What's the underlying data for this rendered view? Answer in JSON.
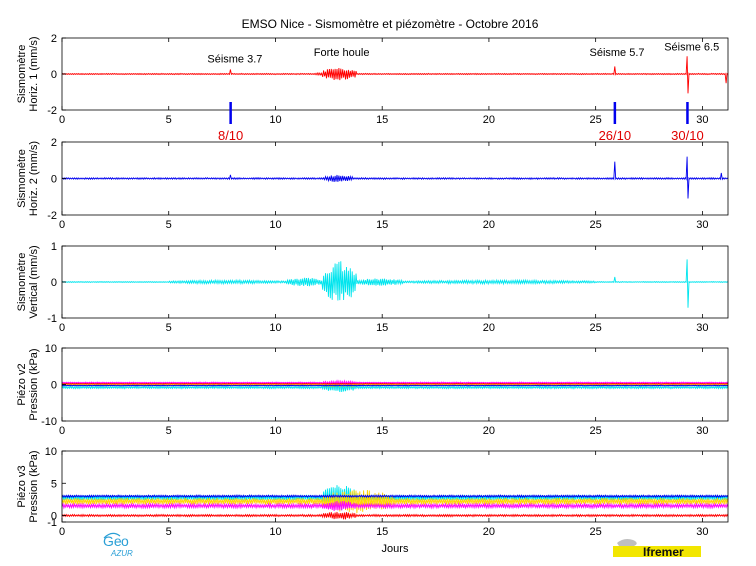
{
  "figure": {
    "title": "EMSO Nice - Sismomètre et piézomètre - Octobre 2016",
    "xlabel": "Jours",
    "xticks": [
      "0",
      "5",
      "10",
      "15",
      "20",
      "25",
      "30"
    ],
    "xlim": [
      0,
      31.2
    ]
  },
  "logos": {
    "geoazur_a": "Ge",
    "geoazur_b": "o",
    "geoazur_c": "AZUR",
    "ifremer": "Ifremer"
  },
  "chart_data": [
    {
      "type": "line",
      "ylabel": [
        "Sismomètre",
        "Horiz. 1 (mm/s)"
      ],
      "ylim": [
        -2,
        2
      ],
      "yticks": [
        "2",
        "0",
        "-2"
      ],
      "series": [
        {
          "color": "#ff0000",
          "noise": 0.03,
          "bursts": [
            {
              "start": 12.2,
              "end": 13.8,
              "amp": 0.35
            },
            {
              "start": 11.8,
              "end": 12.2,
              "amp": 0.08
            }
          ],
          "spikes": [
            {
              "x": 7.9,
              "amp": 0.25
            },
            {
              "x": 25.9,
              "amp": 0.6
            },
            {
              "x": 29.3,
              "amp": 1.1
            },
            {
              "x": 31.1,
              "amp": 0.7
            }
          ]
        }
      ],
      "annotations": [
        {
          "text": "Séisme 3.7",
          "x": 8.1,
          "y": 0.65
        },
        {
          "text": "Forte houle",
          "x": 13.1,
          "y": 1.0
        },
        {
          "text": "Séisme 5.7",
          "x": 26.0,
          "y": 1.0
        },
        {
          "text": "Séisme 6.5",
          "x": 29.5,
          "y": 1.3
        }
      ],
      "markers": [
        {
          "x": 7.9,
          "label": "8/10"
        },
        {
          "x": 25.9,
          "label": "26/10"
        },
        {
          "x": 29.3,
          "label": "30/10"
        }
      ]
    },
    {
      "type": "line",
      "ylabel": [
        "Sismomètre",
        "Horiz. 2 (mm/s)"
      ],
      "ylim": [
        -2,
        2
      ],
      "yticks": [
        "2",
        "0",
        "-2"
      ],
      "series": [
        {
          "color": "#0000ee",
          "noise": 0.04,
          "bursts": [
            {
              "start": 12.3,
              "end": 13.6,
              "amp": 0.2
            }
          ],
          "spikes": [
            {
              "x": 7.9,
              "amp": 0.2
            },
            {
              "x": 25.9,
              "amp": 1.0
            },
            {
              "x": 29.3,
              "amp": 1.8
            },
            {
              "x": 30.9,
              "amp": 0.3
            }
          ]
        }
      ]
    },
    {
      "type": "line",
      "ylabel": [
        "Sismomètre",
        "Vertical (mm/s)"
      ],
      "ylim": [
        -1,
        1
      ],
      "yticks": [
        "1",
        "0",
        "-1"
      ],
      "series": [
        {
          "color": "#00e5ee",
          "noise": 0.01,
          "bursts": [
            {
              "start": 12.2,
              "end": 13.8,
              "amp": 0.55
            },
            {
              "start": 10.5,
              "end": 12.2,
              "amp": 0.12
            },
            {
              "start": 13.8,
              "end": 16,
              "amp": 0.1
            },
            {
              "start": 5,
              "end": 10.5,
              "amp": 0.05
            },
            {
              "start": 16,
              "end": 25,
              "amp": 0.05
            }
          ],
          "spikes": [
            {
              "x": 25.9,
              "amp": 0.2
            },
            {
              "x": 29.3,
              "amp": 0.7
            }
          ]
        }
      ]
    },
    {
      "type": "line",
      "ylabel": [
        "Piézo v2",
        "Pression (kPa)"
      ],
      "ylim": [
        -10,
        10
      ],
      "yticks": [
        "10",
        "0",
        "-10"
      ],
      "series": [
        {
          "color": "#00e5ee",
          "offset": -0.8,
          "noise": 0.3,
          "bursts": [
            {
              "start": 12.2,
              "end": 13.8,
              "amp": 1.3
            }
          ]
        },
        {
          "color": "#ffd400",
          "offset": 0.0,
          "noise": 0.2,
          "bursts": [
            {
              "start": 12.2,
              "end": 13.8,
              "amp": 0.8
            }
          ]
        },
        {
          "color": "#ff00ff",
          "offset": 0.5,
          "noise": 0.15,
          "bursts": [
            {
              "start": 12.2,
              "end": 13.8,
              "amp": 0.5
            }
          ]
        },
        {
          "color": "#ff0000",
          "offset": 0.2,
          "noise": 0.1,
          "bursts": []
        },
        {
          "color": "#0000ee",
          "offset": -0.3,
          "noise": 0.1,
          "bursts": []
        }
      ]
    },
    {
      "type": "line",
      "ylabel": [
        "Piézo v3",
        "Pression (kPa)"
      ],
      "ylim": [
        -1,
        10
      ],
      "yticks": [
        "10",
        "5",
        "0",
        "-1"
      ],
      "series": [
        {
          "color": "#00e5ee",
          "offset": 2.8,
          "noise": 0.4,
          "bursts": [
            {
              "start": 12.2,
              "end": 13.8,
              "amp": 2.0
            }
          ]
        },
        {
          "color": "#ffd400",
          "offset": 2.2,
          "noise": 0.5,
          "bursts": [
            {
              "start": 12.2,
              "end": 15.5,
              "amp": 1.8
            }
          ]
        },
        {
          "color": "#0000ee",
          "offset": 3.0,
          "noise": 0.15,
          "bursts": []
        },
        {
          "color": "#ff00ff",
          "offset": 1.5,
          "noise": 0.3,
          "bursts": [
            {
              "start": 12.2,
              "end": 13.8,
              "amp": 0.8
            }
          ]
        },
        {
          "color": "#ff0000",
          "offset": 0.0,
          "noise": 0.15,
          "bursts": [
            {
              "start": 12.2,
              "end": 13.8,
              "amp": 0.6
            }
          ]
        }
      ]
    }
  ]
}
